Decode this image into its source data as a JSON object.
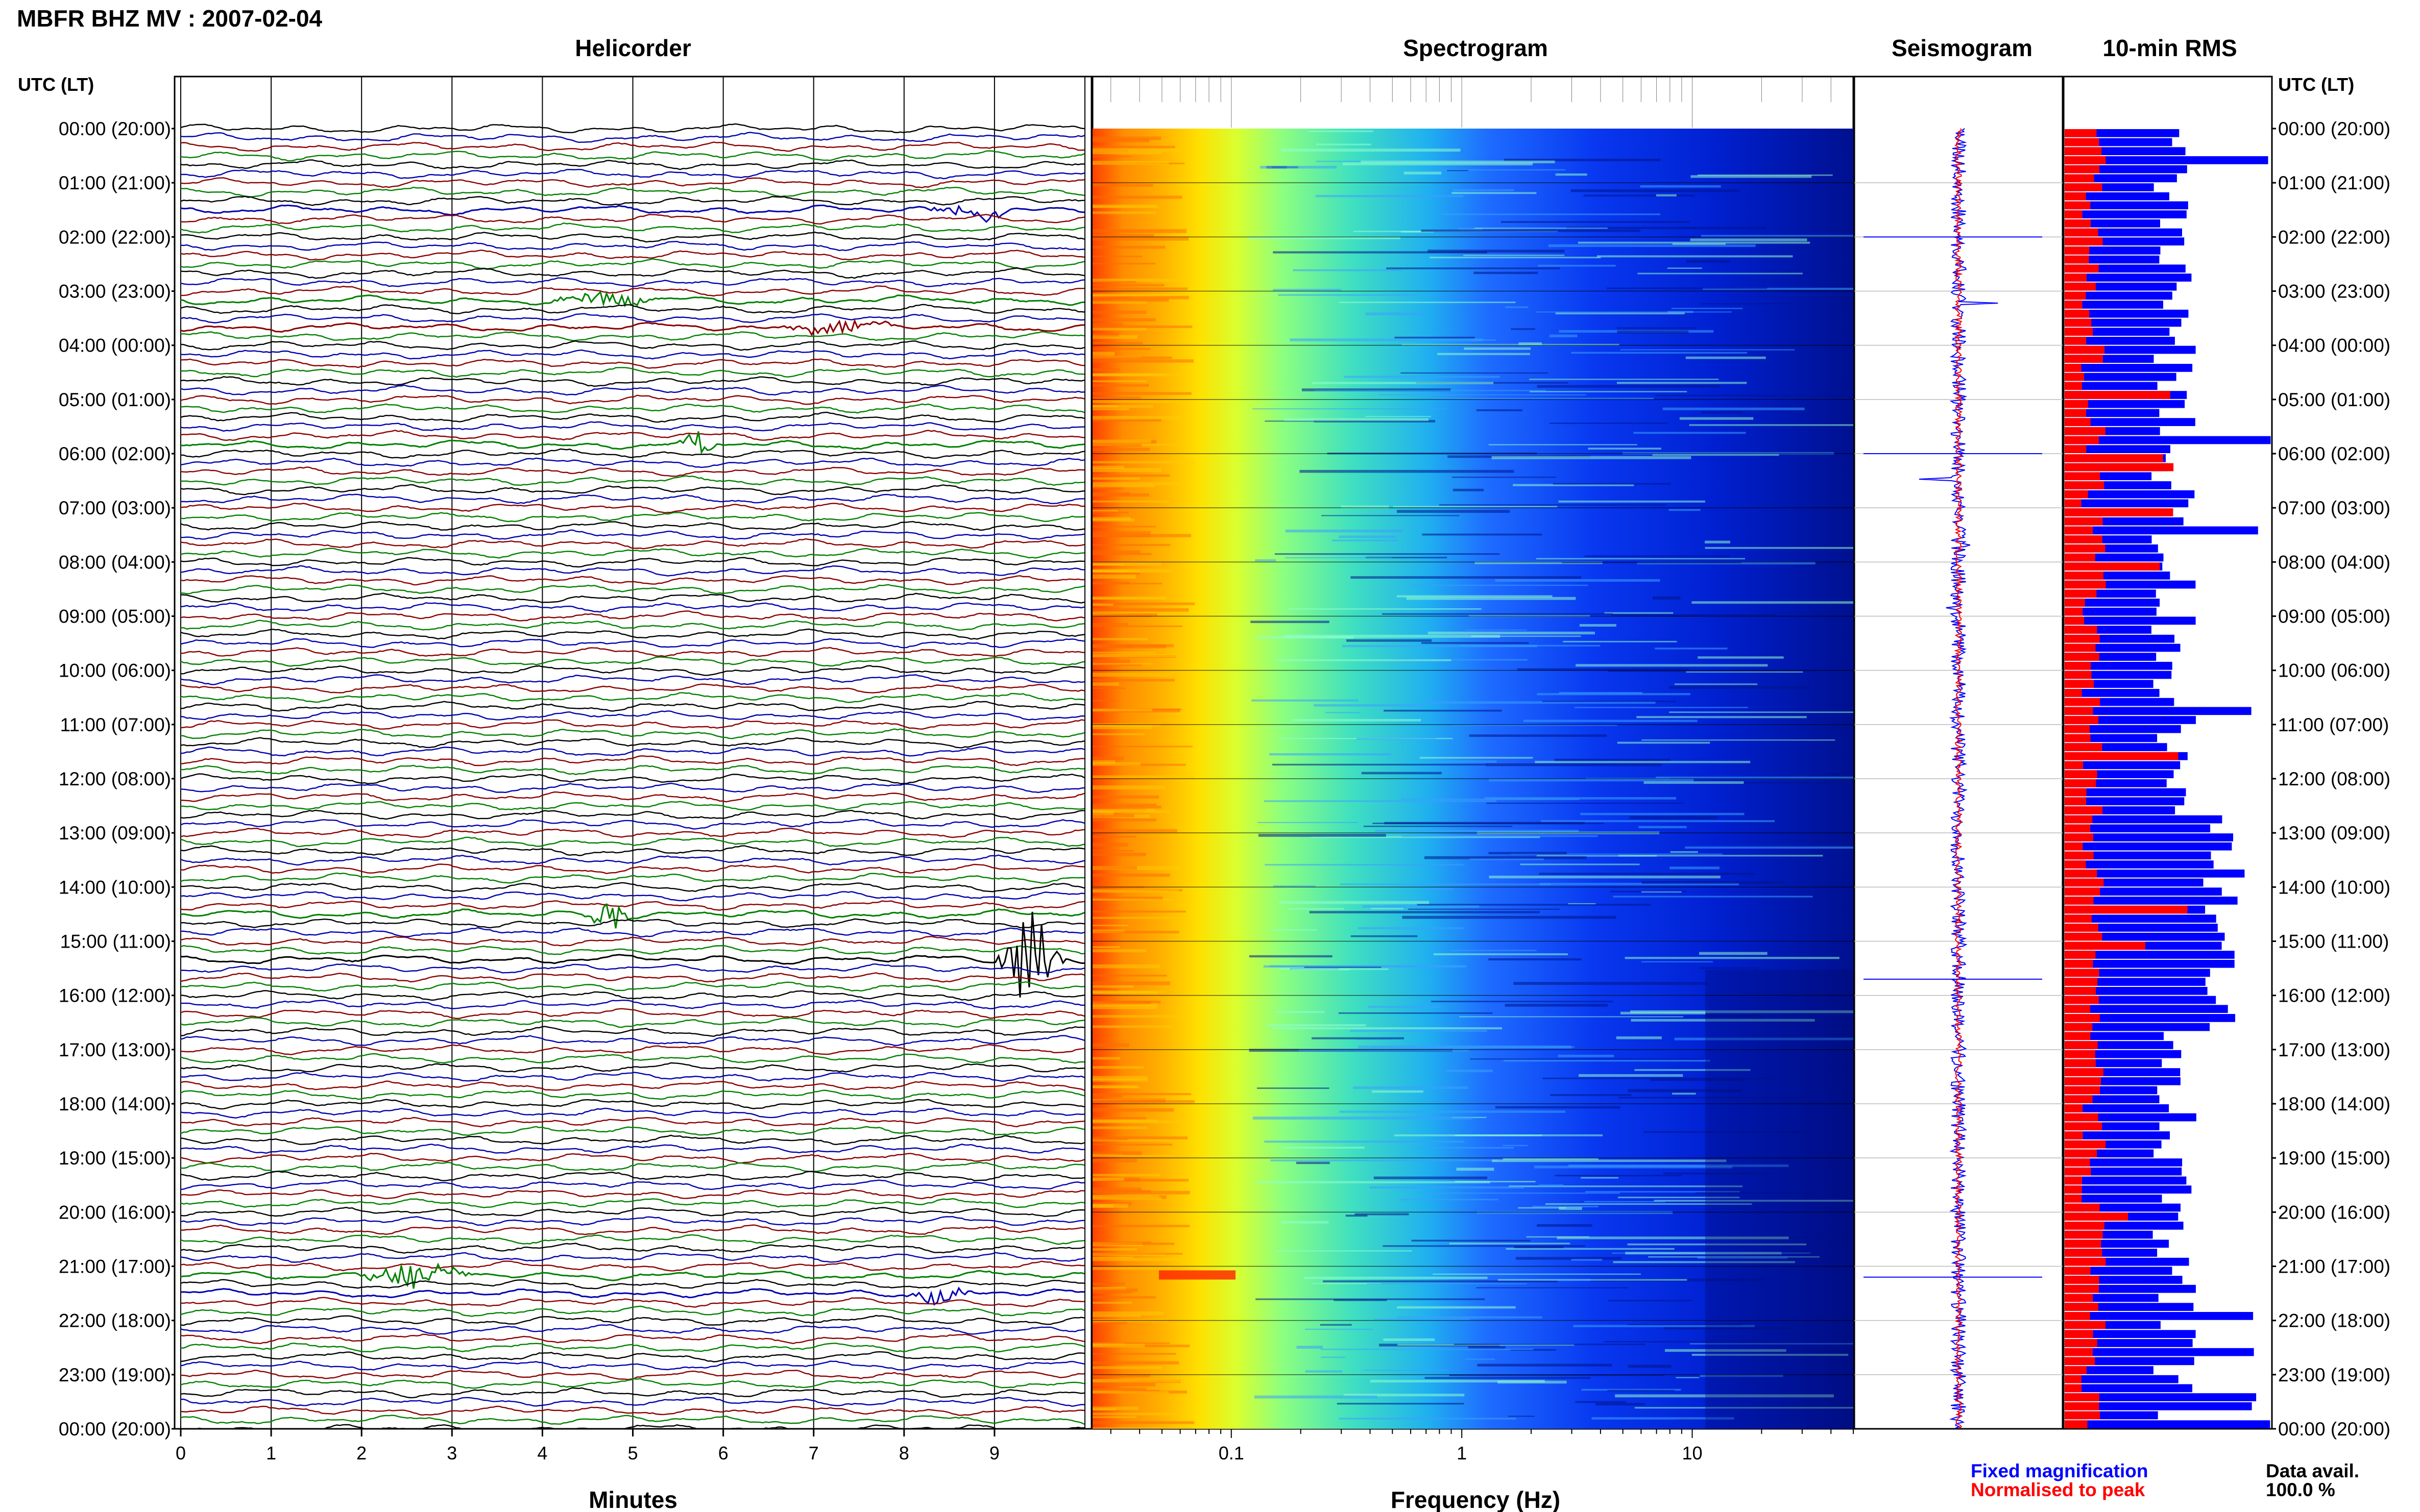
{
  "title": "MBFR BHZ MV : 2007-02-04",
  "panels": {
    "helicorder": "Helicorder",
    "spectrogram": "Spectrogram",
    "seismogram": "Seismogram",
    "rms": "10-min RMS"
  },
  "time_axis_header": "UTC (LT)",
  "time_labels": [
    "00:00 (20:00)",
    "01:00 (21:00)",
    "02:00 (22:00)",
    "03:00 (23:00)",
    "04:00 (00:00)",
    "05:00 (01:00)",
    "06:00 (02:00)",
    "07:00 (03:00)",
    "08:00 (04:00)",
    "09:00 (05:00)",
    "10:00 (06:00)",
    "11:00 (07:00)",
    "12:00 (08:00)",
    "13:00 (09:00)",
    "14:00 (10:00)",
    "15:00 (11:00)",
    "16:00 (12:00)",
    "17:00 (13:00)",
    "18:00 (14:00)",
    "19:00 (15:00)",
    "20:00 (16:00)",
    "21:00 (17:00)",
    "22:00 (18:00)",
    "23:00 (19:00)",
    "00:00 (20:00)"
  ],
  "legend": {
    "fixed": "Fixed magnification",
    "normalised": "Normalised to peak",
    "fixed_color": "#0000ff",
    "normalised_color": "#ff0000"
  },
  "data_availability": {
    "label": "Data avail.",
    "value": "100.0 %"
  },
  "chart_data": [
    {
      "type": "line",
      "name": "helicorder",
      "title": "Helicorder",
      "xlabel": "Minutes",
      "xlim": [
        0,
        10
      ],
      "xticks": [
        "0",
        "1",
        "2",
        "3",
        "4",
        "5",
        "6",
        "7",
        "8",
        "9"
      ],
      "ylim_hours_utc": [
        0,
        24
      ],
      "lines_per_hour": 6,
      "trace_colors": [
        "#000000",
        "#0000b0",
        "#8b0000",
        "#008000"
      ],
      "events": [
        {
          "row": 9,
          "minute_start": 8.2,
          "minute_end": 9.3,
          "amplitude": 1.2
        },
        {
          "row": 19,
          "minute_start": 4.0,
          "minute_end": 5.3,
          "amplitude": 0.9
        },
        {
          "row": 22,
          "minute_start": 6.6,
          "minute_end": 8.0,
          "amplitude": 0.9
        },
        {
          "row": 35,
          "minute_start": 5.5,
          "minute_end": 6.0,
          "amplitude": 1.3
        },
        {
          "row": 87,
          "minute_start": 4.4,
          "minute_end": 5.0,
          "amplitude": 2.2
        },
        {
          "row": 92,
          "minute_start": 9.0,
          "minute_end": 9.8,
          "amplitude": 6.0
        },
        {
          "row": 127,
          "minute_start": 1.8,
          "minute_end": 3.3,
          "amplitude": 1.4
        },
        {
          "row": 129,
          "minute_start": 8.0,
          "minute_end": 8.8,
          "amplitude": 1.1
        }
      ]
    },
    {
      "type": "heatmap",
      "name": "spectrogram",
      "title": "Spectrogram",
      "xlabel": "Frequency (Hz)",
      "x_scale": "log",
      "xlim": [
        0.025,
        50
      ],
      "xticks": [
        "0.1",
        "1",
        "10"
      ],
      "colormap": [
        "#8b0000",
        "#ff4500",
        "#ffa500",
        "#ffff00",
        "#7fff7f",
        "#00ffff",
        "#1e90ff",
        "#0000ff",
        "#00008b"
      ]
    },
    {
      "type": "line",
      "name": "seismogram",
      "title": "Seismogram",
      "series": [
        {
          "name": "Fixed magnification",
          "color": "#0000ff"
        },
        {
          "name": "Normalised to peak",
          "color": "#ff0000"
        }
      ]
    },
    {
      "type": "bar",
      "name": "rms",
      "title": "10-min RMS",
      "orientation": "horizontal",
      "n_bins": 144,
      "series": [
        {
          "name": "Fixed magnification",
          "color": "#0000ff"
        },
        {
          "name": "Normalised to peak",
          "color": "#ff0000"
        }
      ]
    }
  ]
}
